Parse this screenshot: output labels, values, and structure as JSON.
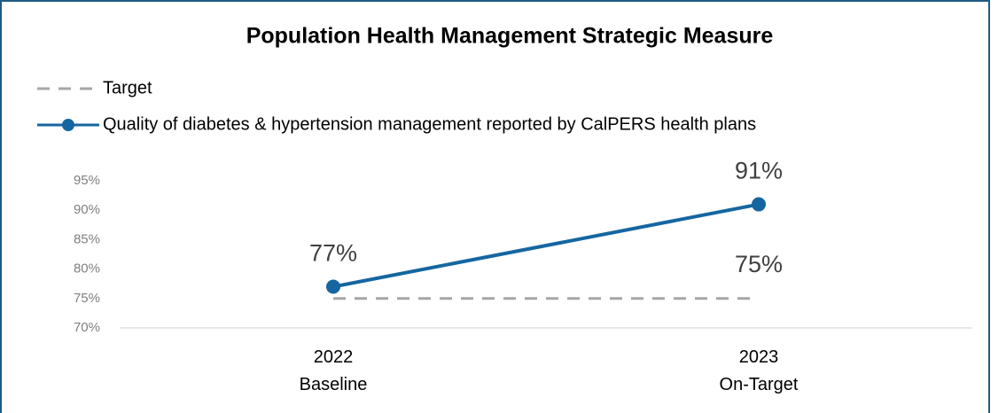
{
  "chart_data": {
    "type": "line",
    "title": "Population Health Management Strategic Measure",
    "categories": [
      "2022\nBaseline",
      "2023\nOn-Target"
    ],
    "series": [
      {
        "name": "Target",
        "color": "#a6a6a6",
        "dashed": true,
        "markers": false,
        "values": [
          75,
          75
        ],
        "value_labels": [
          null,
          "75%"
        ]
      },
      {
        "name": "Quality of diabetes & hypertension management reported by CalPERS health plans",
        "color": "#1566a0",
        "dashed": false,
        "markers": true,
        "values": [
          77,
          91
        ],
        "value_labels": [
          "77%",
          "91%"
        ]
      }
    ],
    "ylim": [
      70,
      95
    ],
    "yticks": [
      {
        "value": 70,
        "label": "70%"
      },
      {
        "value": 75,
        "label": "75%"
      },
      {
        "value": 80,
        "label": "80%"
      },
      {
        "value": 85,
        "label": "85%"
      },
      {
        "value": 90,
        "label": "90%"
      },
      {
        "value": 95,
        "label": "95%"
      }
    ],
    "legend": "top-left",
    "grid": false
  }
}
